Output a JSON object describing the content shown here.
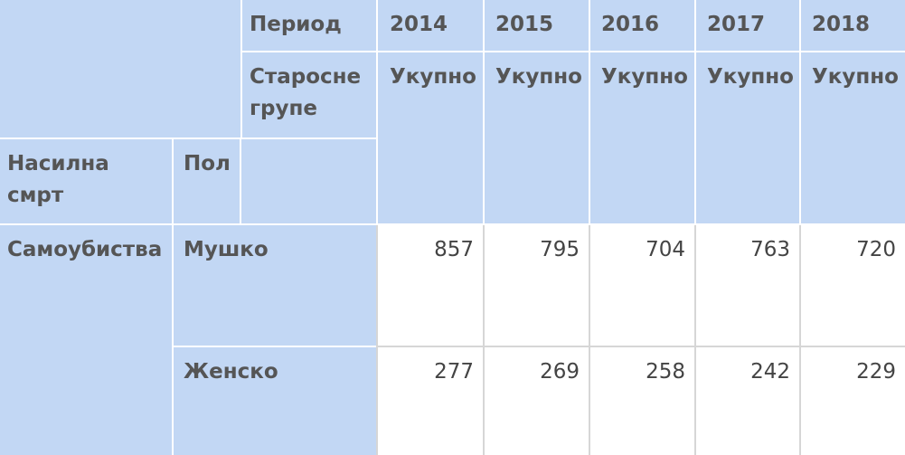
{
  "header": {
    "period_label": "Период",
    "age_groups_label": "Старосне групе",
    "violent_death_label": "Насилна смрт",
    "sex_label": "Пол",
    "years": [
      "2014",
      "2015",
      "2016",
      "2017",
      "2018"
    ],
    "total_label": "Укупно"
  },
  "rows": {
    "category": "Самоубиства",
    "male_label": "Мушко",
    "female_label": "Женско",
    "male_values": [
      "857",
      "795",
      "704",
      "763",
      "720"
    ],
    "female_values": [
      "277",
      "269",
      "258",
      "242",
      "229"
    ]
  },
  "colors": {
    "header_bg": "#c2d7f4",
    "border": "#ffffff",
    "text": "#555555"
  }
}
